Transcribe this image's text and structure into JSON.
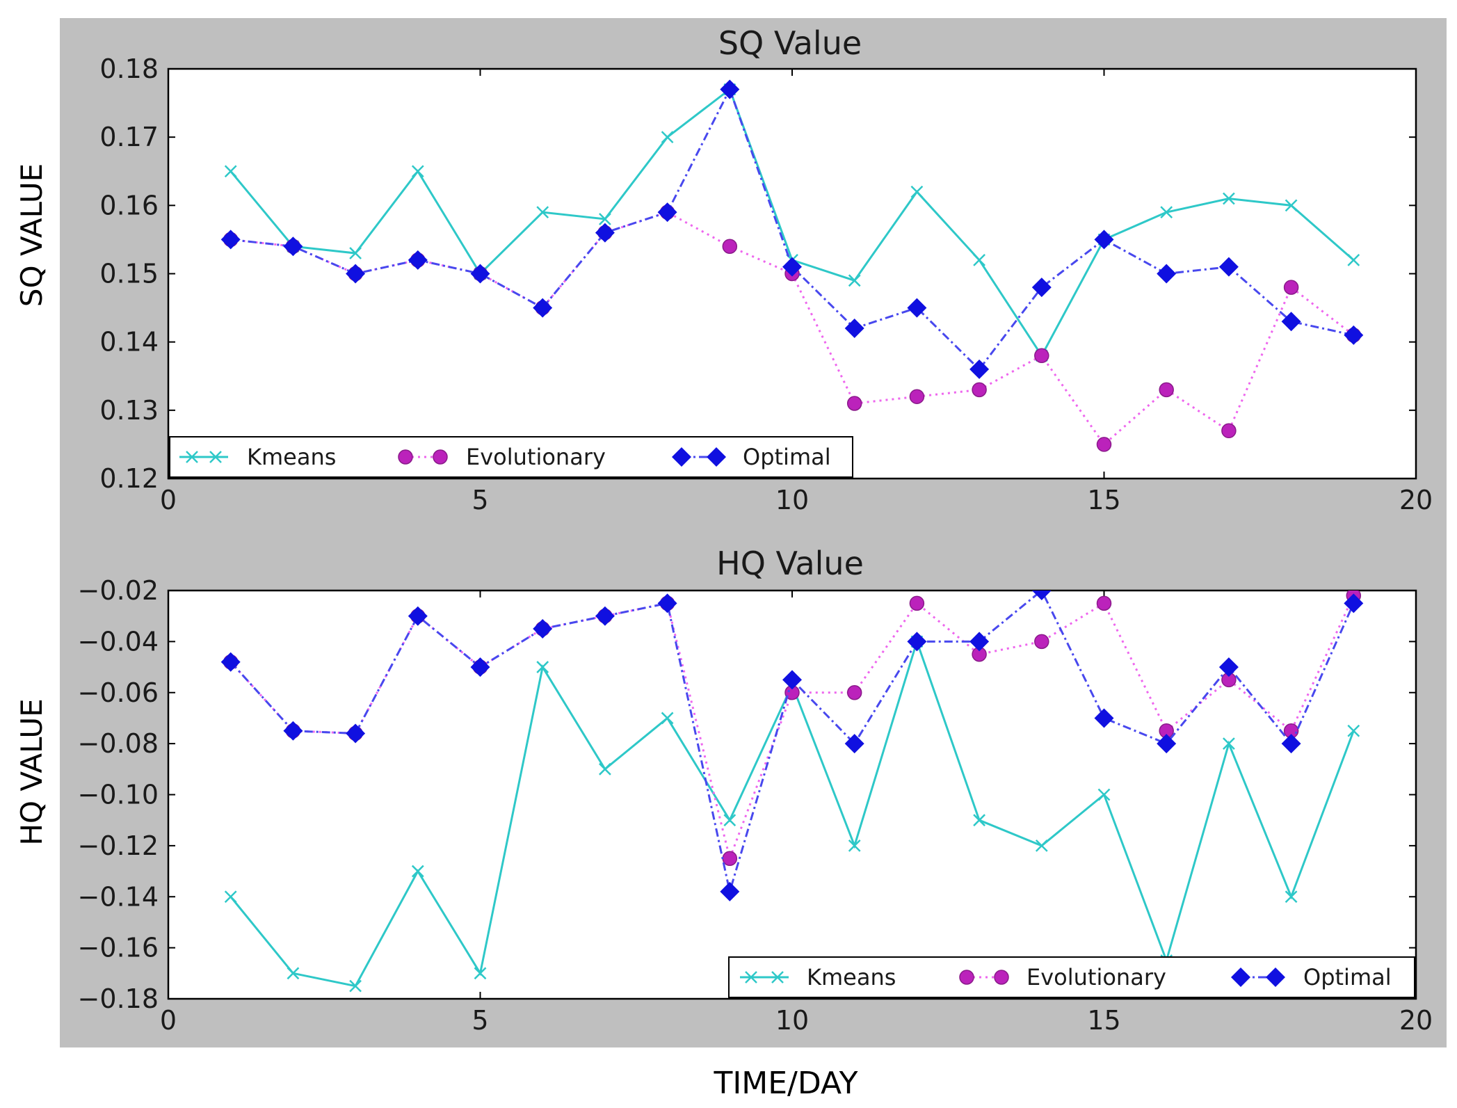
{
  "colors": {
    "frame": "#bfbfbf",
    "kmeans": "#2ec8c8",
    "evolutionary": "#bb22bb",
    "evolutionary_line": "#ee66ee",
    "optimal": "#1010e0",
    "optimal_line": "#4848ee"
  },
  "xlabel": "TIME/DAY",
  "legend_labels": {
    "kmeans": "Kmeans",
    "evolutionary": "Evolutionary",
    "optimal": "Optimal"
  },
  "chart_data": [
    {
      "type": "line",
      "title": "SQ Value",
      "xlabel": "TIME/DAY",
      "ylabel": "SQ VALUE",
      "xlim": [
        0,
        20
      ],
      "ylim": [
        0.12,
        0.18
      ],
      "xticks": [
        0,
        5,
        10,
        15,
        20
      ],
      "xtick_labels": [
        "0",
        "5",
        "10",
        "15",
        "20"
      ],
      "yticks": [
        0.12,
        0.13,
        0.14,
        0.15,
        0.16,
        0.17,
        0.18
      ],
      "ytick_labels": [
        "0.12",
        "0.13",
        "0.14",
        "0.15",
        "0.16",
        "0.17",
        "0.18"
      ],
      "legend_position": "lower-left",
      "x": [
        1,
        2,
        3,
        4,
        5,
        6,
        7,
        8,
        9,
        10,
        11,
        12,
        13,
        14,
        15,
        16,
        17,
        18,
        19
      ],
      "series": [
        {
          "name": "Kmeans",
          "values": [
            0.165,
            0.154,
            0.153,
            0.165,
            0.15,
            0.159,
            0.158,
            0.17,
            0.177,
            0.152,
            0.149,
            0.162,
            0.152,
            0.138,
            0.155,
            0.159,
            0.161,
            0.16,
            0.152
          ]
        },
        {
          "name": "Evolutionary",
          "values": [
            0.155,
            0.154,
            0.15,
            0.152,
            0.15,
            0.145,
            0.156,
            0.159,
            0.154,
            0.15,
            0.131,
            0.132,
            0.133,
            0.138,
            0.125,
            0.133,
            0.127,
            0.148,
            0.141
          ]
        },
        {
          "name": "Optimal",
          "values": [
            0.155,
            0.154,
            0.15,
            0.152,
            0.15,
            0.145,
            0.156,
            0.159,
            0.177,
            0.151,
            0.142,
            0.145,
            0.136,
            0.148,
            0.155,
            0.15,
            0.151,
            0.143,
            0.141
          ]
        }
      ]
    },
    {
      "type": "line",
      "title": "HQ Value",
      "xlabel": "TIME/DAY",
      "ylabel": "HQ VALUE",
      "xlim": [
        0,
        20
      ],
      "ylim": [
        -0.18,
        -0.02
      ],
      "xticks": [
        0,
        5,
        10,
        15,
        20
      ],
      "xtick_labels": [
        "0",
        "5",
        "10",
        "15",
        "20"
      ],
      "yticks": [
        -0.18,
        -0.16,
        -0.14,
        -0.12,
        -0.1,
        -0.08,
        -0.06,
        -0.04,
        -0.02
      ],
      "ytick_labels": [
        "−0.18",
        "−0.16",
        "−0.14",
        "−0.12",
        "−0.10",
        "−0.08",
        "−0.06",
        "−0.04",
        "−0.02"
      ],
      "legend_position": "lower-right",
      "x": [
        1,
        2,
        3,
        4,
        5,
        6,
        7,
        8,
        9,
        10,
        11,
        12,
        13,
        14,
        15,
        16,
        17,
        18,
        19
      ],
      "series": [
        {
          "name": "Kmeans",
          "values": [
            -0.14,
            -0.17,
            -0.175,
            -0.13,
            -0.17,
            -0.05,
            -0.09,
            -0.07,
            -0.11,
            -0.057,
            -0.12,
            -0.04,
            -0.11,
            -0.12,
            -0.1,
            -0.165,
            -0.08,
            -0.14,
            -0.075
          ]
        },
        {
          "name": "Evolutionary",
          "values": [
            -0.048,
            -0.075,
            -0.076,
            -0.03,
            -0.05,
            -0.035,
            -0.03,
            -0.025,
            -0.125,
            -0.06,
            -0.06,
            -0.025,
            -0.045,
            -0.04,
            -0.025,
            -0.075,
            -0.055,
            -0.075,
            -0.022
          ]
        },
        {
          "name": "Optimal",
          "values": [
            -0.048,
            -0.075,
            -0.076,
            -0.03,
            -0.05,
            -0.035,
            -0.03,
            -0.025,
            -0.138,
            -0.055,
            -0.08,
            -0.04,
            -0.04,
            -0.02,
            -0.07,
            -0.08,
            -0.05,
            -0.08,
            -0.025
          ]
        }
      ]
    }
  ]
}
